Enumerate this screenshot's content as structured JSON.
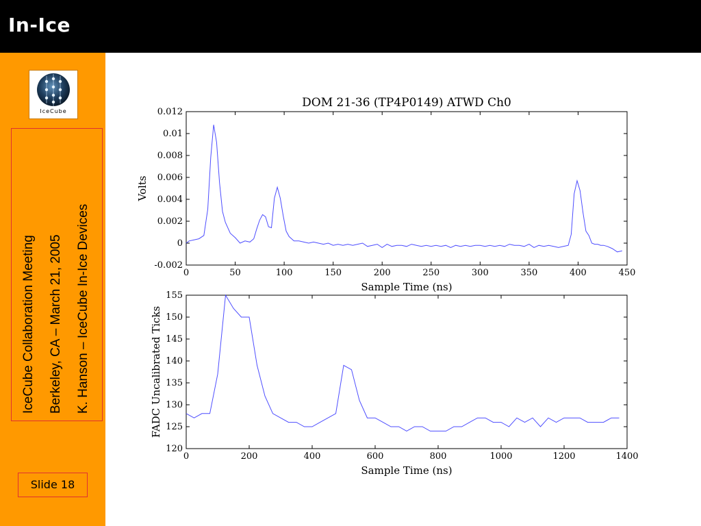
{
  "slide": {
    "title": "In-Ice",
    "logo_text": "IceCube",
    "meeting_lines": [
      "IceCube Collaboration Meeting",
      "Berkeley, CA – March 21, 2005",
      "K. Hanson – IceCube In-Ice Devices"
    ],
    "slide_number": "Slide 18"
  },
  "colors": {
    "header_bg": "#000000",
    "sidebar_bg": "#ff9900",
    "box_border": "#e03030",
    "trace": "#4d4dff"
  },
  "chart_data": [
    {
      "type": "line",
      "title": "DOM 21-36 (TP4P0149) ATWD Ch0",
      "xlabel": "Sample Time (ns)",
      "ylabel": "Volts",
      "xlim": [
        0,
        450
      ],
      "ylim": [
        -0.002,
        0.012
      ],
      "xticks": [
        0,
        50,
        100,
        150,
        200,
        250,
        300,
        350,
        400,
        450
      ],
      "xtick_labels": [
        "0",
        "50",
        "100",
        "150",
        "200",
        "250",
        "300",
        "350",
        "400",
        "450"
      ],
      "yticks": [
        -0.002,
        0,
        0.002,
        0.004,
        0.006,
        0.008,
        0.01,
        0.012
      ],
      "ytick_labels": [
        "-0.002",
        "0",
        "0.002",
        "0.004",
        "0.006",
        "0.008",
        "0.01",
        "0.012"
      ],
      "grid": false,
      "series": [
        {
          "x": [
            0,
            3,
            8,
            13,
            18,
            22,
            25,
            28,
            31,
            34,
            37,
            40,
            45,
            50,
            55,
            60,
            65,
            69,
            72,
            75,
            78,
            81,
            84,
            87,
            90,
            93,
            96,
            99,
            102,
            105,
            110,
            115,
            120,
            125,
            130,
            135,
            140,
            145,
            150,
            155,
            160,
            165,
            170,
            175,
            180,
            185,
            190,
            195,
            200,
            205,
            210,
            215,
            220,
            225,
            230,
            235,
            240,
            245,
            250,
            255,
            260,
            265,
            270,
            275,
            280,
            285,
            290,
            295,
            300,
            305,
            310,
            315,
            320,
            325,
            330,
            335,
            340,
            345,
            350,
            355,
            360,
            365,
            370,
            375,
            380,
            385,
            390,
            393,
            396,
            399,
            402,
            405,
            408,
            411,
            414,
            417,
            420,
            423,
            426,
            430,
            435,
            440,
            445
          ],
          "values": [
            0.0,
            0.0002,
            0.0003,
            0.0004,
            0.0007,
            0.0031,
            0.0078,
            0.0108,
            0.0092,
            0.0055,
            0.0029,
            0.0019,
            0.0009,
            0.0005,
            0.0,
            0.0002,
            0.0001,
            0.0004,
            0.0013,
            0.0021,
            0.0026,
            0.0024,
            0.0015,
            0.0014,
            0.0041,
            0.0051,
            0.0041,
            0.0025,
            0.0011,
            0.0006,
            0.0002,
            0.0002,
            0.0001,
            0.0,
            0.0001,
            0.0,
            -0.0001,
            0.0,
            -0.0002,
            -0.0001,
            -0.0002,
            -0.0001,
            -0.0002,
            -0.0001,
            0.0,
            -0.0003,
            -0.0002,
            -0.0001,
            -0.0004,
            -0.0001,
            -0.0003,
            -0.0002,
            -0.0002,
            -0.0003,
            -0.0001,
            -0.0002,
            -0.0003,
            -0.0002,
            -0.0003,
            -0.0002,
            -0.0003,
            -0.0002,
            -0.0004,
            -0.0002,
            -0.0003,
            -0.0002,
            -0.0003,
            -0.0002,
            -0.0002,
            -0.0003,
            -0.0002,
            -0.0003,
            -0.0002,
            -0.0003,
            -0.0001,
            -0.0002,
            -0.0002,
            -0.0003,
            -0.0001,
            -0.0004,
            -0.0002,
            -0.0003,
            -0.0002,
            -0.0003,
            -0.0004,
            -0.0003,
            -0.0002,
            0.0008,
            0.0045,
            0.0057,
            0.0048,
            0.0028,
            0.0011,
            0.0007,
            0.0,
            -0.0001,
            -0.0001,
            -0.0002,
            -0.0002,
            -0.0003,
            -0.0005,
            -0.0008,
            -0.0007
          ]
        }
      ]
    },
    {
      "type": "line",
      "title": "",
      "xlabel": "Sample Time (ns)",
      "ylabel": "FADC Uncalibrated Ticks",
      "xlim": [
        0,
        1400
      ],
      "ylim": [
        120,
        155
      ],
      "xticks": [
        0,
        200,
        400,
        600,
        800,
        1000,
        1200,
        1400
      ],
      "xtick_labels": [
        "0",
        "200",
        "400",
        "600",
        "800",
        "1000",
        "1200",
        "1400"
      ],
      "yticks": [
        120,
        125,
        130,
        135,
        140,
        145,
        150,
        155
      ],
      "ytick_labels": [
        "120",
        "125",
        "130",
        "135",
        "140",
        "145",
        "150",
        "155"
      ],
      "grid": false,
      "series": [
        {
          "x": [
            0,
            25,
            50,
            75,
            100,
            125,
            150,
            175,
            200,
            225,
            250,
            275,
            300,
            325,
            350,
            375,
            400,
            425,
            450,
            475,
            500,
            525,
            550,
            575,
            600,
            625,
            650,
            675,
            700,
            725,
            750,
            775,
            800,
            825,
            850,
            875,
            900,
            925,
            950,
            975,
            1000,
            1025,
            1050,
            1075,
            1100,
            1125,
            1150,
            1175,
            1200,
            1225,
            1250,
            1275,
            1300,
            1325,
            1350,
            1375
          ],
          "values": [
            128,
            127,
            128,
            128,
            137,
            155,
            152,
            150,
            150,
            139,
            132,
            128,
            127,
            126,
            126,
            125,
            125,
            126,
            127,
            128,
            139,
            138,
            131,
            127,
            127,
            126,
            125,
            125,
            124,
            125,
            125,
            124,
            124,
            124,
            125,
            125,
            126,
            127,
            127,
            126,
            126,
            125,
            127,
            126,
            127,
            125,
            127,
            126,
            127,
            127,
            127,
            126,
            126,
            126,
            127,
            127
          ]
        }
      ]
    }
  ]
}
